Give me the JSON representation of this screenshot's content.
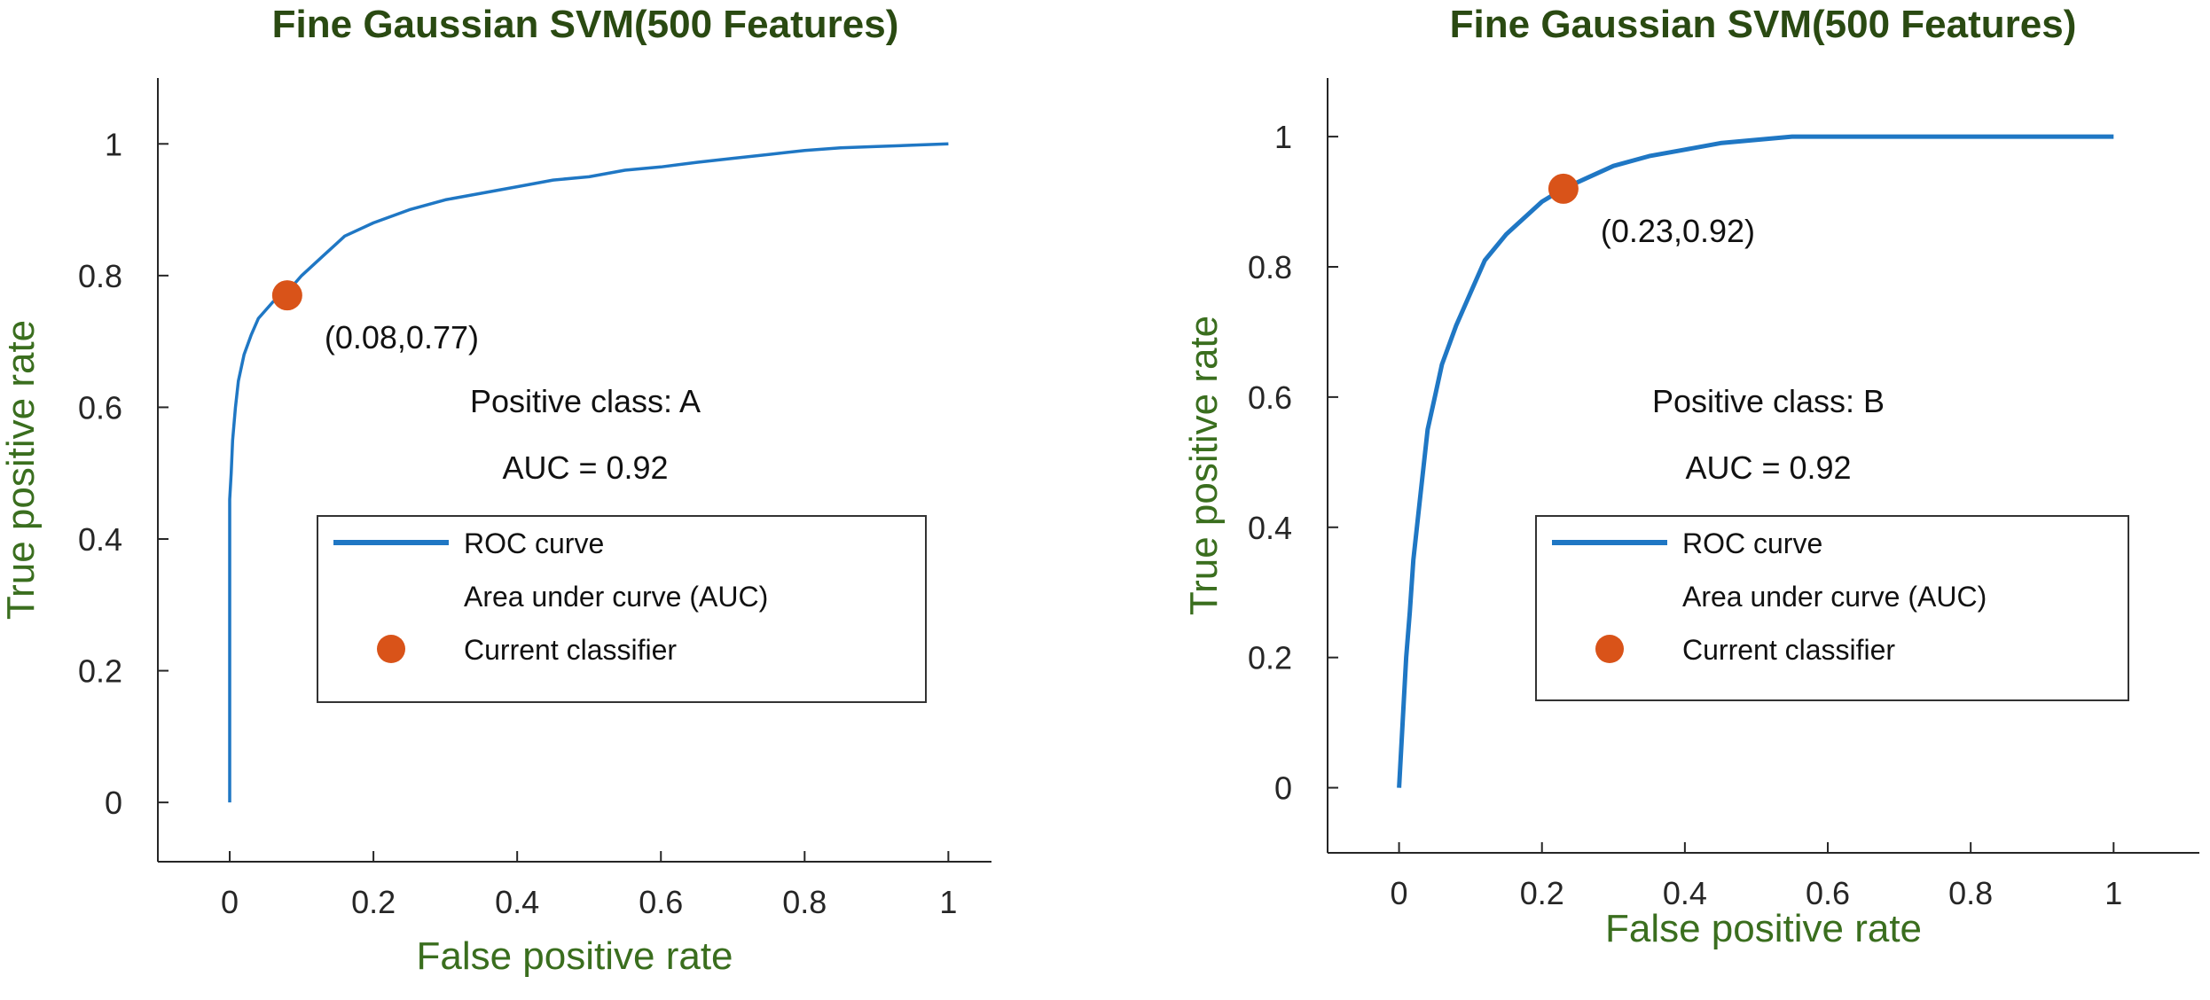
{
  "colors": {
    "title": "#2a4a12",
    "axis_label": "#3a6e1e",
    "curve": "#1f77c4",
    "point": "#d95319",
    "axis": "#262626"
  },
  "chart_data": [
    {
      "type": "line",
      "title": "Fine Gaussian SVM(500 Features)",
      "xlabel": "False positive rate",
      "ylabel": "True positive rate",
      "xlim": [
        -0.1,
        1.06
      ],
      "ylim": [
        -0.09,
        1.1
      ],
      "xticks": [
        0,
        0.2,
        0.4,
        0.6,
        0.8,
        1
      ],
      "xtick_labels": [
        "0",
        "0.2",
        "0.4",
        "0.6",
        "0.8",
        "1"
      ],
      "yticks": [
        0,
        0.2,
        0.4,
        0.6,
        0.8,
        1
      ],
      "ytick_labels": [
        "0",
        "0.2",
        "0.4",
        "0.6",
        "0.8",
        "1"
      ],
      "grid": false,
      "series": [
        {
          "name": "ROC curve",
          "x": [
            0,
            0,
            0,
            0.002,
            0.004,
            0.008,
            0.012,
            0.02,
            0.03,
            0.04,
            0.06,
            0.08,
            0.1,
            0.13,
            0.16,
            0.2,
            0.25,
            0.3,
            0.35,
            0.4,
            0.45,
            0.5,
            0.55,
            0.6,
            0.65,
            0.7,
            0.75,
            0.8,
            0.85,
            0.9,
            0.95,
            1.0
          ],
          "y": [
            0,
            0.3,
            0.46,
            0.5,
            0.55,
            0.6,
            0.64,
            0.68,
            0.71,
            0.735,
            0.76,
            0.775,
            0.8,
            0.83,
            0.86,
            0.88,
            0.9,
            0.915,
            0.925,
            0.935,
            0.945,
            0.95,
            0.96,
            0.965,
            0.972,
            0.978,
            0.984,
            0.99,
            0.994,
            0.996,
            0.998,
            1.0
          ]
        }
      ],
      "current_classifier": {
        "name": "Current classifier",
        "x": 0.08,
        "y": 0.77,
        "label": "(0.08,0.77)"
      },
      "annotations": [
        "Positive class: A",
        "AUC = 0.92"
      ],
      "legend": {
        "placement": "center-right",
        "entries": [
          "ROC curve",
          "Area under curve (AUC)",
          "Current classifier"
        ]
      }
    },
    {
      "type": "line",
      "title": "Fine Gaussian SVM(500 Features)",
      "xlabel": "False positive rate",
      "ylabel": "True positive rate",
      "xlim": [
        -0.1,
        1.12
      ],
      "ylim": [
        -0.1,
        1.09
      ],
      "xticks": [
        0,
        0.2,
        0.4,
        0.6,
        0.8,
        1
      ],
      "xtick_labels": [
        "0",
        "0.2",
        "0.4",
        "0.6",
        "0.8",
        "1"
      ],
      "yticks": [
        0,
        0.2,
        0.4,
        0.6,
        0.8,
        1
      ],
      "ytick_labels": [
        "0",
        "0.2",
        "0.4",
        "0.6",
        "0.8",
        "1"
      ],
      "grid": false,
      "series": [
        {
          "name": "ROC curve",
          "x": [
            0,
            0.005,
            0.01,
            0.015,
            0.02,
            0.03,
            0.04,
            0.05,
            0.06,
            0.08,
            0.1,
            0.12,
            0.15,
            0.2,
            0.23,
            0.26,
            0.3,
            0.35,
            0.4,
            0.45,
            0.5,
            0.55,
            0.6,
            0.7,
            0.8,
            0.9,
            1.0
          ],
          "y": [
            0,
            0.1,
            0.2,
            0.27,
            0.35,
            0.45,
            0.55,
            0.6,
            0.65,
            0.71,
            0.76,
            0.81,
            0.85,
            0.9,
            0.92,
            0.935,
            0.955,
            0.97,
            0.98,
            0.99,
            0.995,
            1.0,
            1.0,
            1.0,
            1.0,
            1.0,
            1.0
          ]
        }
      ],
      "current_classifier": {
        "name": "Current classifier",
        "x": 0.23,
        "y": 0.92,
        "label": "(0.23,0.92)"
      },
      "annotations": [
        "Positive class: B",
        "AUC = 0.92"
      ],
      "legend": {
        "placement": "center-right",
        "entries": [
          "ROC curve",
          "Area under curve (AUC)",
          "Current classifier"
        ]
      }
    }
  ]
}
